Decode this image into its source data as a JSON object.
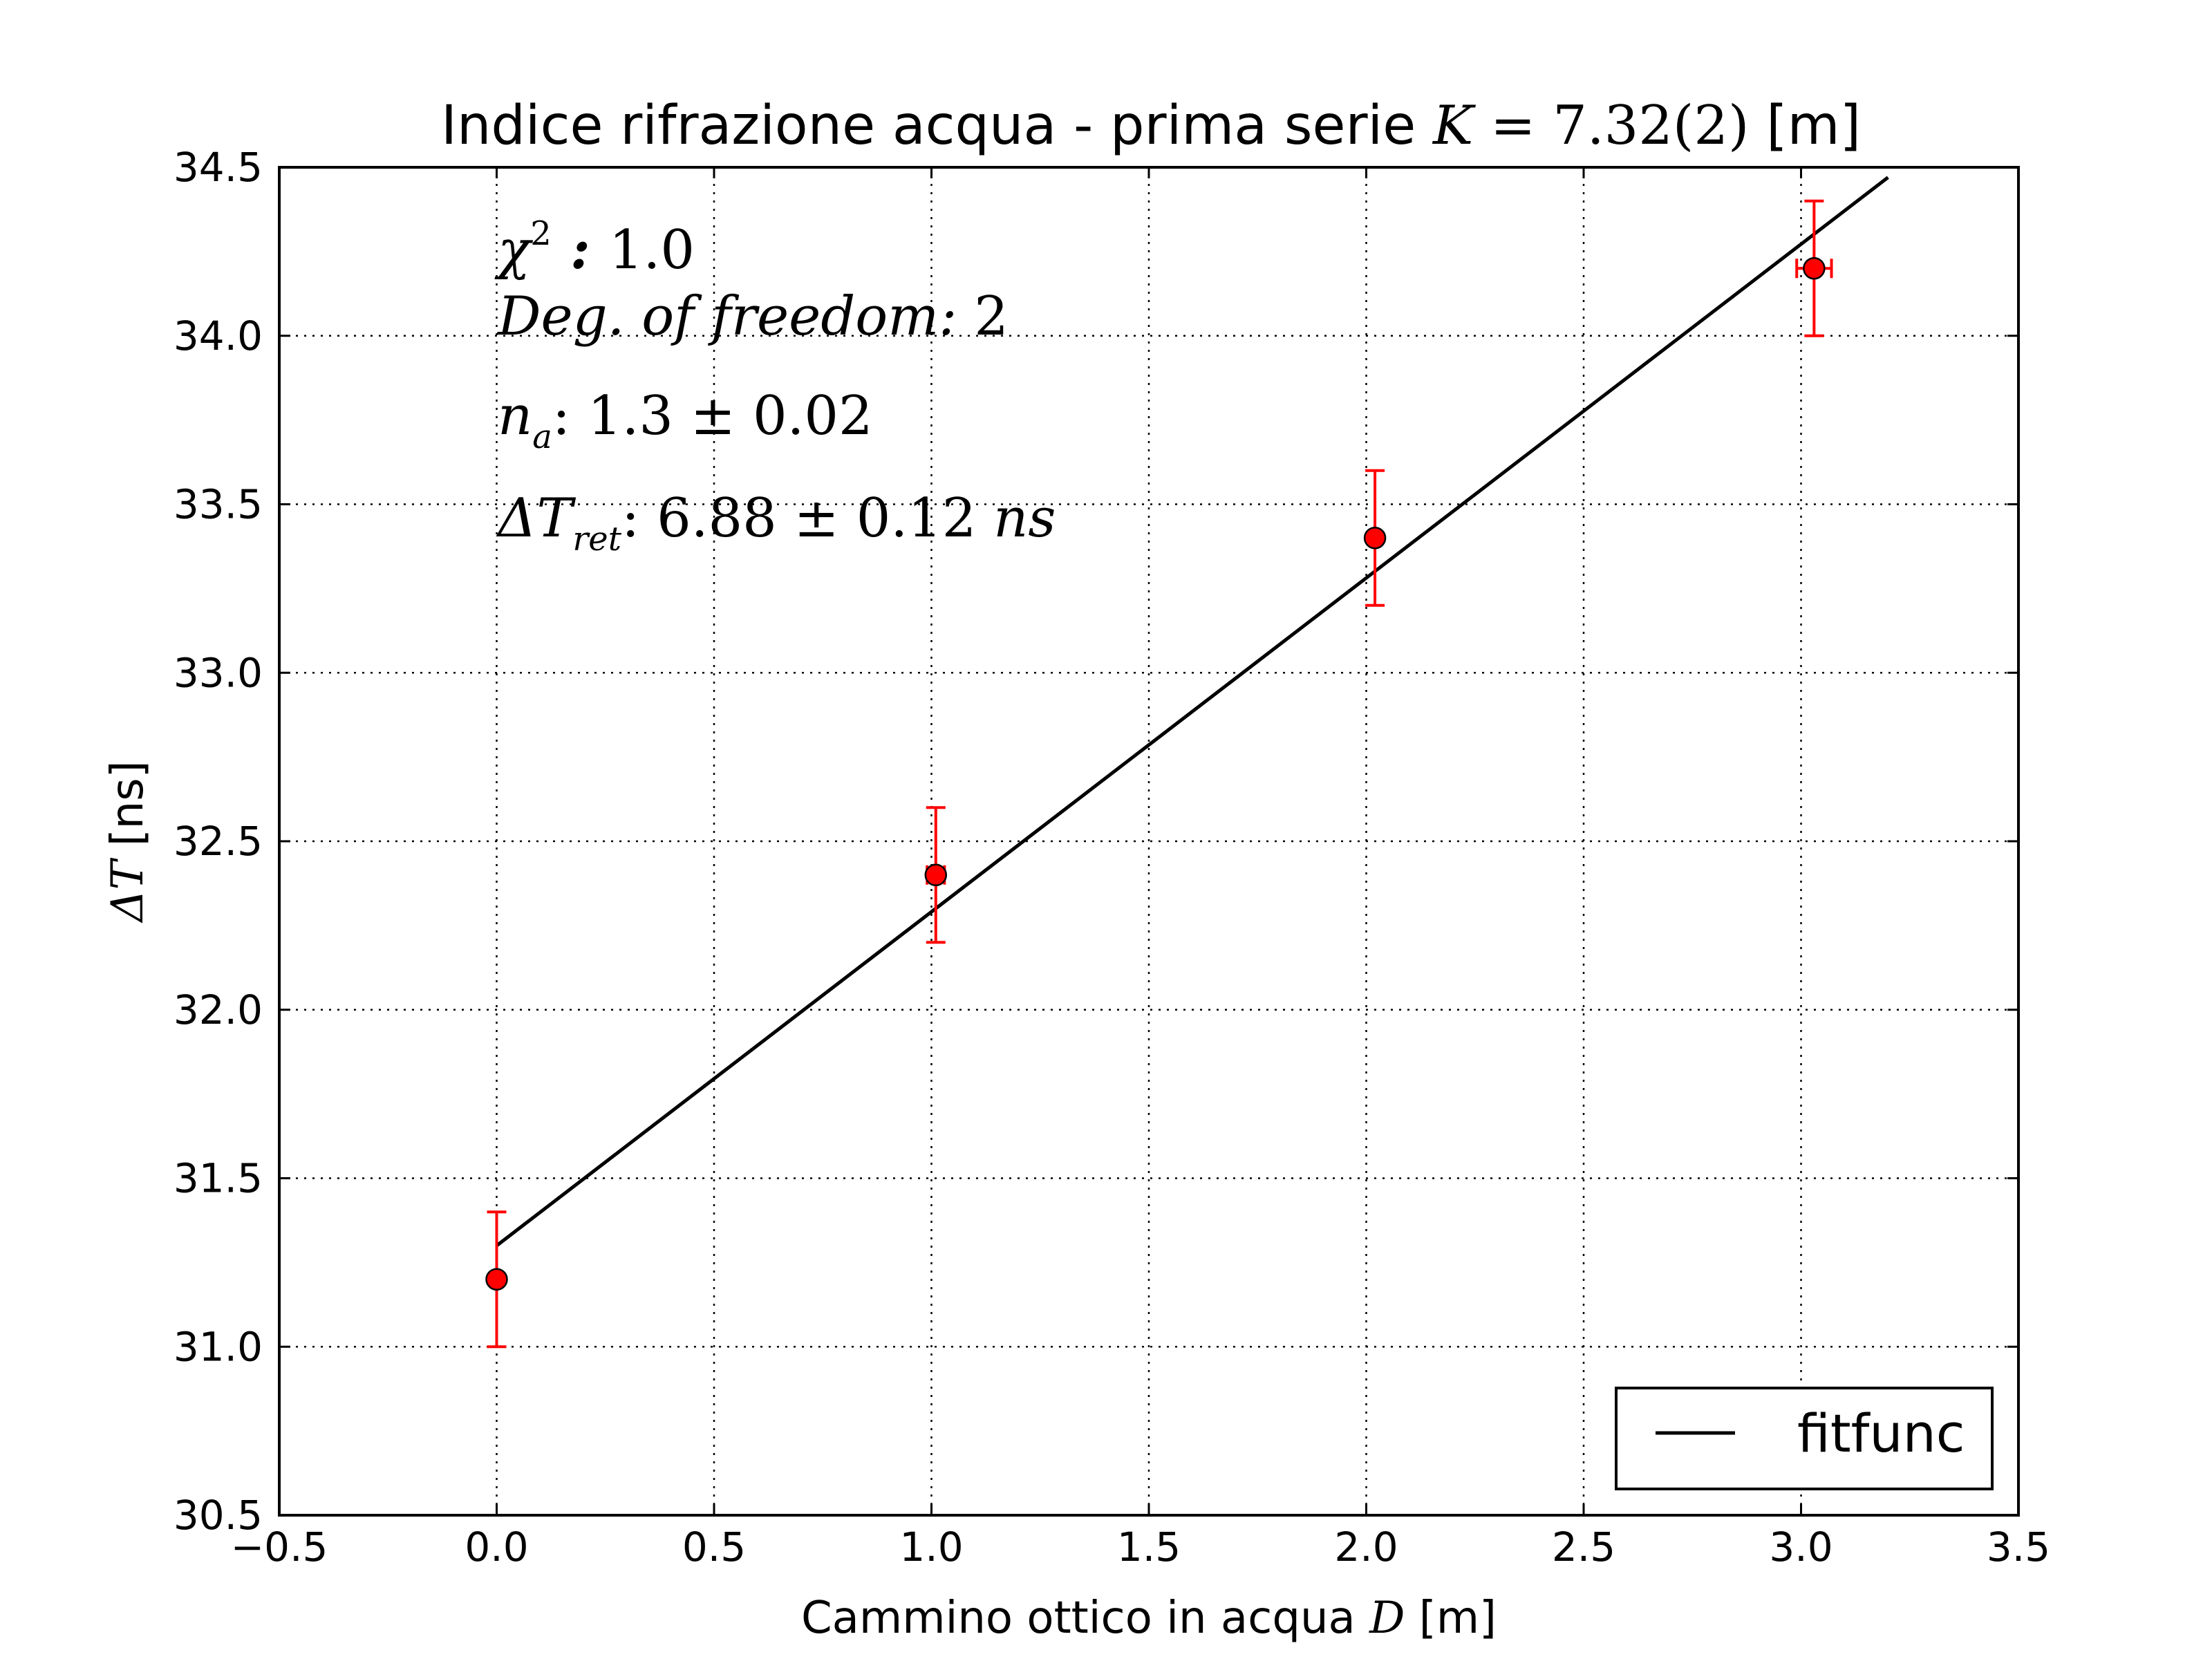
{
  "chart_data": {
    "type": "scatter",
    "title": {
      "text": "Indice rifrazione acqua - prima serie ",
      "math_var": "K",
      "math_eq": " = ",
      "math_val": "7.32(2)",
      "unit": " [m]"
    },
    "xlabel": {
      "text": "Cammino ottico in acqua ",
      "math_var": "D",
      "unit": " [m]"
    },
    "ylabel": {
      "math": "ΔT",
      "unit": " [ns]"
    },
    "xlim": [
      -0.5,
      3.5
    ],
    "ylim": [
      30.5,
      34.5
    ],
    "xticks": [
      -0.5,
      0.0,
      0.5,
      1.0,
      1.5,
      2.0,
      2.5,
      3.0,
      3.5
    ],
    "yticks": [
      30.5,
      31.0,
      31.5,
      32.0,
      32.5,
      33.0,
      33.5,
      34.0,
      34.5
    ],
    "xtick_labels": [
      "−0.5",
      "0.0",
      "0.5",
      "1.0",
      "1.5",
      "2.0",
      "2.5",
      "3.0",
      "3.5"
    ],
    "ytick_labels": [
      "30.5",
      "31.0",
      "31.5",
      "32.0",
      "32.5",
      "33.0",
      "33.5",
      "34.0",
      "34.5"
    ],
    "grid": true,
    "legend_position": "lower-right",
    "series": [
      {
        "kind": "errorbar",
        "color": "#ff0000",
        "ecolor": "#ff0000",
        "x": [
          0.0,
          1.01,
          2.02,
          3.03
        ],
        "y": [
          31.2,
          32.4,
          33.4,
          34.2
        ],
        "yerr": [
          0.2,
          0.2,
          0.2,
          0.2
        ],
        "xerr": [
          0.0,
          0.02,
          0.01,
          0.04
        ]
      },
      {
        "kind": "line",
        "name": "fitfunc",
        "color": "#000000",
        "x": [
          0.0,
          3.2
        ],
        "y": [
          31.3,
          34.47
        ]
      }
    ],
    "annotations": {
      "chi2_label": "χ",
      "chi2_sup": "2",
      "chi2_colon": " : ",
      "chi2_value": "1.0",
      "dof_label": "Deg. of freedom: ",
      "dof_value": "2",
      "n_label": "n",
      "n_sub": "a",
      "n_value": ": 1.3 ± 0.02",
      "dt_label": "ΔT",
      "dt_sub": "ret",
      "dt_value": ": 6.88 ± 0.12   ",
      "dt_unit": "ns"
    }
  }
}
